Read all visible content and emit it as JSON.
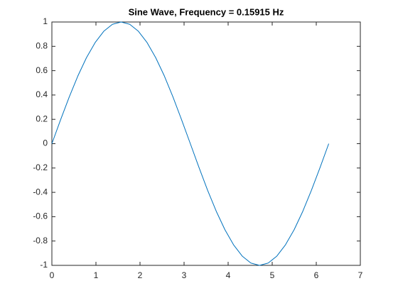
{
  "chart_data": {
    "type": "line",
    "title": "Sine Wave, Frequency = 0.15915 Hz",
    "x": [
      0,
      0.196,
      0.393,
      0.589,
      0.785,
      0.982,
      1.178,
      1.374,
      1.571,
      1.767,
      1.963,
      2.16,
      2.356,
      2.553,
      2.749,
      2.945,
      3.142,
      3.338,
      3.534,
      3.731,
      3.927,
      4.123,
      4.32,
      4.516,
      4.712,
      4.909,
      5.105,
      5.301,
      5.498,
      5.694,
      5.89,
      6.087,
      6.283
    ],
    "series": [
      {
        "color": "#0072bd",
        "values": [
          0,
          0.195,
          0.383,
          0.556,
          0.707,
          0.831,
          0.924,
          0.981,
          1,
          0.981,
          0.924,
          0.831,
          0.707,
          0.556,
          0.383,
          0.195,
          0,
          -0.195,
          -0.383,
          -0.556,
          -0.707,
          -0.831,
          -0.924,
          -0.981,
          -1,
          -0.981,
          -0.924,
          -0.831,
          -0.707,
          -0.556,
          -0.383,
          -0.195,
          0
        ]
      }
    ],
    "xlim": [
      0,
      7
    ],
    "xticks": [
      0,
      1,
      2,
      3,
      4,
      5,
      6,
      7
    ],
    "ylim": [
      -1,
      1
    ],
    "yticks": [
      -1,
      -0.8,
      -0.6,
      -0.4,
      -0.2,
      0,
      0.2,
      0.4,
      0.6,
      0.8,
      1
    ],
    "grid": false
  }
}
